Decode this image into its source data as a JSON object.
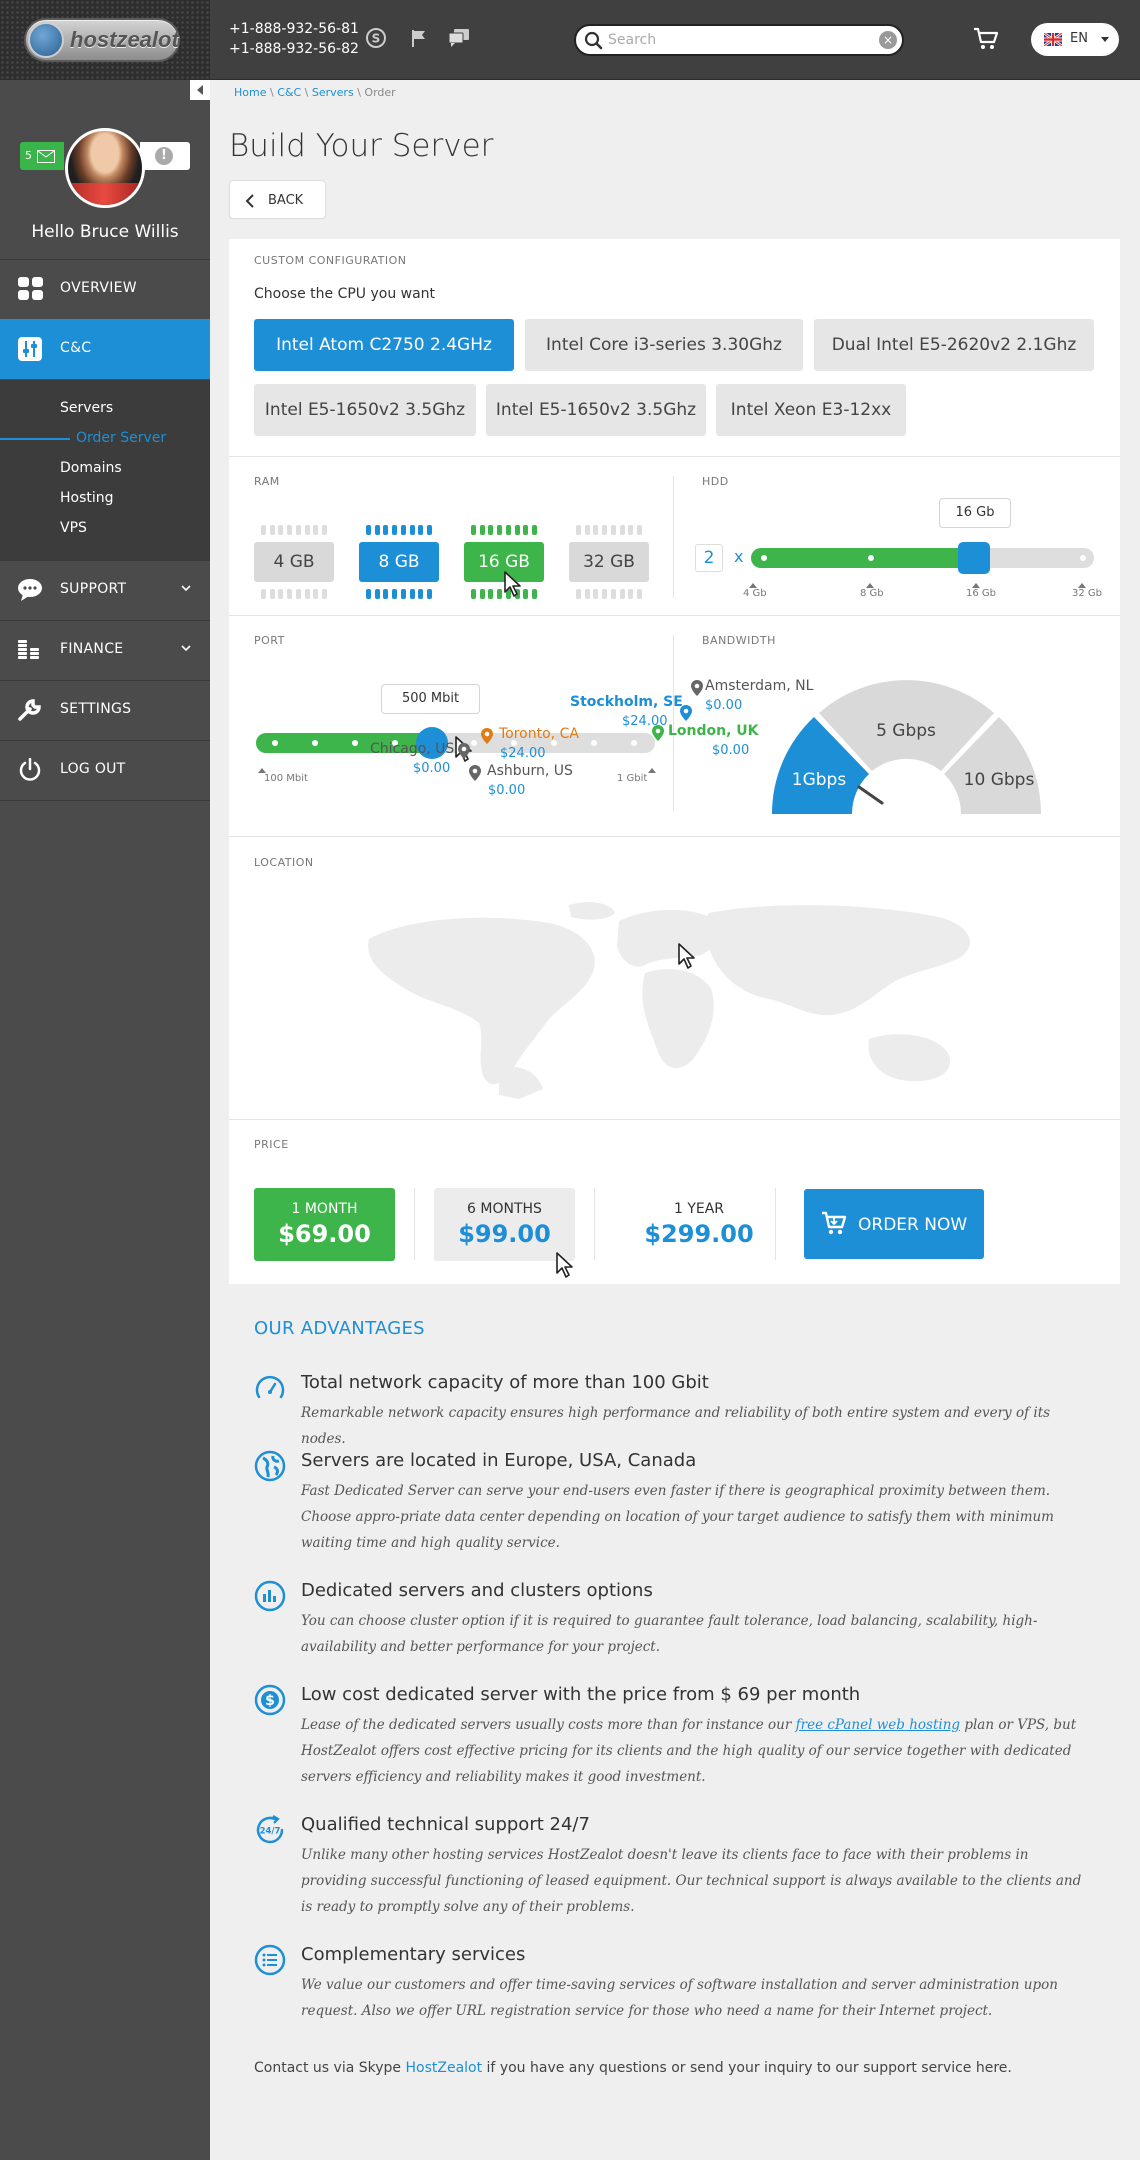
{
  "header": {
    "logo_text": "hostzealot",
    "phone1": "+1-888-932-56-81",
    "phone2": "+1-888-932-56-82",
    "search_placeholder": "Search",
    "lang": "EN"
  },
  "profile": {
    "messages": "5",
    "hello": "Hello",
    "name": "Bruce Willis"
  },
  "sidebar": {
    "items": [
      {
        "label": "OVERVIEW",
        "icon": "grid-icon"
      },
      {
        "label": "C&C",
        "icon": "sliders-icon"
      },
      {
        "label": "SUPPORT",
        "icon": "chat-icon"
      },
      {
        "label": "FINANCE",
        "icon": "coins-icon"
      },
      {
        "label": "SETTINGS",
        "icon": "wrench-icon"
      },
      {
        "label": "LOG OUT",
        "icon": "power-icon"
      }
    ],
    "subitems": [
      "Servers",
      "Order Server",
      "Domains",
      "Hosting",
      "VPS"
    ]
  },
  "breadcrumb": {
    "home": "Home",
    "cc": "C&C",
    "servers": "Servers",
    "current": "Order",
    "sep": "\\"
  },
  "page": {
    "title": "Build Your Server",
    "back": "BACK"
  },
  "config": {
    "section_label": "CUSTOM CONFIGURATION",
    "cpu_question": "Choose the CPU you want",
    "cpus": [
      "Intel Atom C2750 2.4GHz",
      "Intel Core i3-series 3.30Ghz",
      "Dual Intel E5-2620v2 2.1Ghz",
      "Intel E5-1650v2 3.5Ghz",
      "Intel E5-1650v2 3.5Ghz",
      "Intel Xeon E3-12xx"
    ],
    "selected_cpu_index": 0
  },
  "ram": {
    "label": "RAM",
    "options": [
      "4 GB",
      "8 GB",
      "16 GB",
      "32 GB"
    ],
    "selected": "8 GB",
    "hover": "16 GB"
  },
  "hdd": {
    "label": "HDD",
    "count": "2",
    "times": "x",
    "value_label": "16 Gb",
    "ticks": [
      "4 Gb",
      "8 Gb",
      "16 Gb",
      "32 Gb"
    ],
    "level": 0.65
  },
  "port": {
    "label": "PORT",
    "value_label": "500 Mbit",
    "min_label": "100 Mbit",
    "max_label": "1 Gbit",
    "level": 0.44
  },
  "bandwidth": {
    "label": "BANDWIDTH",
    "options": [
      "1Gbps",
      "5 Gbps",
      "10 Gbps"
    ],
    "selected": "1Gbps"
  },
  "location": {
    "label": "LOCATION",
    "pins": [
      {
        "name": "Chicago, US",
        "price": "$0.00"
      },
      {
        "name": "Ashburn, US",
        "price": "$0.00"
      },
      {
        "name": "Toronto, CA",
        "price": "$24.00"
      },
      {
        "name": "Stockholm, SE",
        "price": "$24.00"
      },
      {
        "name": "Amsterdam, NL",
        "price": "$0.00"
      },
      {
        "name": "London, UK",
        "price": "$0.00"
      }
    ]
  },
  "price": {
    "label": "PRICE",
    "plans": [
      {
        "period": "1 MONTH",
        "amount": "$69.00"
      },
      {
        "period": "6 MONTHS",
        "amount": "$99.00"
      },
      {
        "period": "1 YEAR",
        "amount": "$299.00"
      }
    ],
    "order": "ORDER NOW"
  },
  "advantages": {
    "title": "OUR ADVANTAGES",
    "items": [
      {
        "title": "Total network capacity of more than 100 Gbit",
        "text": "Remarkable network capacity ensures high performance and reliability of both entire system and every of its nodes.",
        "icon": "speedometer-icon"
      },
      {
        "title": "Servers are located in Europe, USA, Canada",
        "text": "Fast Dedicated Server can serve your end-users even faster if there is geographical proximity between them. Choose appro-priate data center depending on location of your target audience to satisfy them with minimum waiting time and high quality service.",
        "icon": "globe-icon"
      },
      {
        "title": "Dedicated servers and clusters options",
        "text": "You can choose cluster option if it is required to guarantee fault tolerance, load balancing, scalability, high-availability and better performance for your project.",
        "icon": "cluster-icon"
      },
      {
        "title": "Low cost dedicated server with the price from $ 69 per month",
        "text_before": "Lease of the dedicated servers usually costs more than for instance our ",
        "link": "free cPanel web hosting",
        "text_after": " plan or VPS, but HostZealot offers cost effective pricing for its clients and the high quality of our service together with dedicated servers efficiency and reliability makes it good investment.",
        "icon": "dollar-icon"
      },
      {
        "title": "Qualified technical support 24/7",
        "text": "Unlike many other hosting services HostZealot doesn't leave its clients face to face with their problems in providing successful functioning of leased equipment. Our technical support is always available to the clients and is ready to promptly solve any of their problems.",
        "icon": "support-24-7-icon",
        "badge": "24/7"
      },
      {
        "title": "Complementary services",
        "text": "We value our customers and offer time-saving services of software installation and server administration upon request. Also we offer URL registration service for those who need a name for their Internet project.",
        "icon": "list-icon"
      }
    ]
  },
  "contact": {
    "before": "Contact us via Skype ",
    "link": "HostZealot",
    "after": " if you have any questions or send your inquiry to our support service here."
  },
  "colors": {
    "accent": "#1d8fd6",
    "green": "#3db54a",
    "sidebar": "#4b4b4b",
    "topbar": "#404040"
  }
}
